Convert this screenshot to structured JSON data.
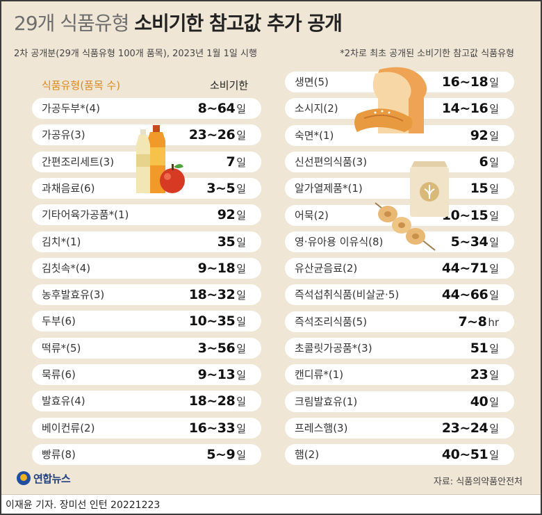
{
  "title": {
    "part1": "29개 식품유형",
    "part2": "소비기한 참고값 추가 공개"
  },
  "subtitle": "2차 공개분(29개 식품유형 100개 품목), 2023년 1월 1일 시행",
  "note": "*2차로 최초 공개된 소비기한 참고값 식품유형",
  "headers": {
    "type": "식품유형(품목 수)",
    "expiry": "소비기한"
  },
  "left_items": [
    {
      "name": "가공두부*(4)",
      "value": "8~64",
      "unit": "일"
    },
    {
      "name": "가공유(3)",
      "value": "23~26",
      "unit": "일"
    },
    {
      "name": "간편조리세트(3)",
      "value": "7",
      "unit": "일"
    },
    {
      "name": "과채음료(6)",
      "value": "3~5",
      "unit": "일"
    },
    {
      "name": "기타어육가공품*(1)",
      "value": "92",
      "unit": "일"
    },
    {
      "name": "김치*(1)",
      "value": "35",
      "unit": "일"
    },
    {
      "name": "김칫속*(4)",
      "value": "9~18",
      "unit": "일"
    },
    {
      "name": "농후발효유(3)",
      "value": "18~32",
      "unit": "일"
    },
    {
      "name": "두부(6)",
      "value": "10~35",
      "unit": "일"
    },
    {
      "name": "떡류*(5)",
      "value": "3~56",
      "unit": "일"
    },
    {
      "name": "묵류(6)",
      "value": "9~13",
      "unit": "일"
    },
    {
      "name": "발효유(4)",
      "value": "18~28",
      "unit": "일"
    },
    {
      "name": "베이컨류(2)",
      "value": "16~33",
      "unit": "일"
    },
    {
      "name": "빵류(8)",
      "value": "5~9",
      "unit": "일"
    }
  ],
  "right_items": [
    {
      "name": "생면(5)",
      "value": "16~18",
      "unit": "일"
    },
    {
      "name": "소시지(2)",
      "value": "14~16",
      "unit": "일"
    },
    {
      "name": "숙면*(1)",
      "value": "92",
      "unit": "일"
    },
    {
      "name": "신선편의식품(3)",
      "value": "6",
      "unit": "일"
    },
    {
      "name": "알가열제품*(1)",
      "value": "15",
      "unit": "일"
    },
    {
      "name": "어묵(2)",
      "value": "10~15",
      "unit": "일"
    },
    {
      "name": "영·유아용 이유식(8)",
      "value": "5~34",
      "unit": "일"
    },
    {
      "name": "유산균음료(2)",
      "value": "44~71",
      "unit": "일"
    },
    {
      "name": "즉석섭취식품(비살균·5)",
      "value": "44~66",
      "unit": "일"
    },
    {
      "name": "즉석조리식품(5)",
      "value": "7~8",
      "unit": "hr"
    },
    {
      "name": "초콜릿가공품*(3)",
      "value": "51",
      "unit": "일"
    },
    {
      "name": "캔디류*(1)",
      "value": "23",
      "unit": "일"
    },
    {
      "name": "크림발효유(1)",
      "value": "40",
      "unit": "일"
    },
    {
      "name": "프레스햄(3)",
      "value": "23~24",
      "unit": "일"
    },
    {
      "name": "햄(2)",
      "value": "40~51",
      "unit": "일"
    }
  ],
  "logo_text": "연합뉴스",
  "source": "자료: 식품의약품안전처",
  "credit": "이재윤 기자. 장미선 인턴  20221223"
}
